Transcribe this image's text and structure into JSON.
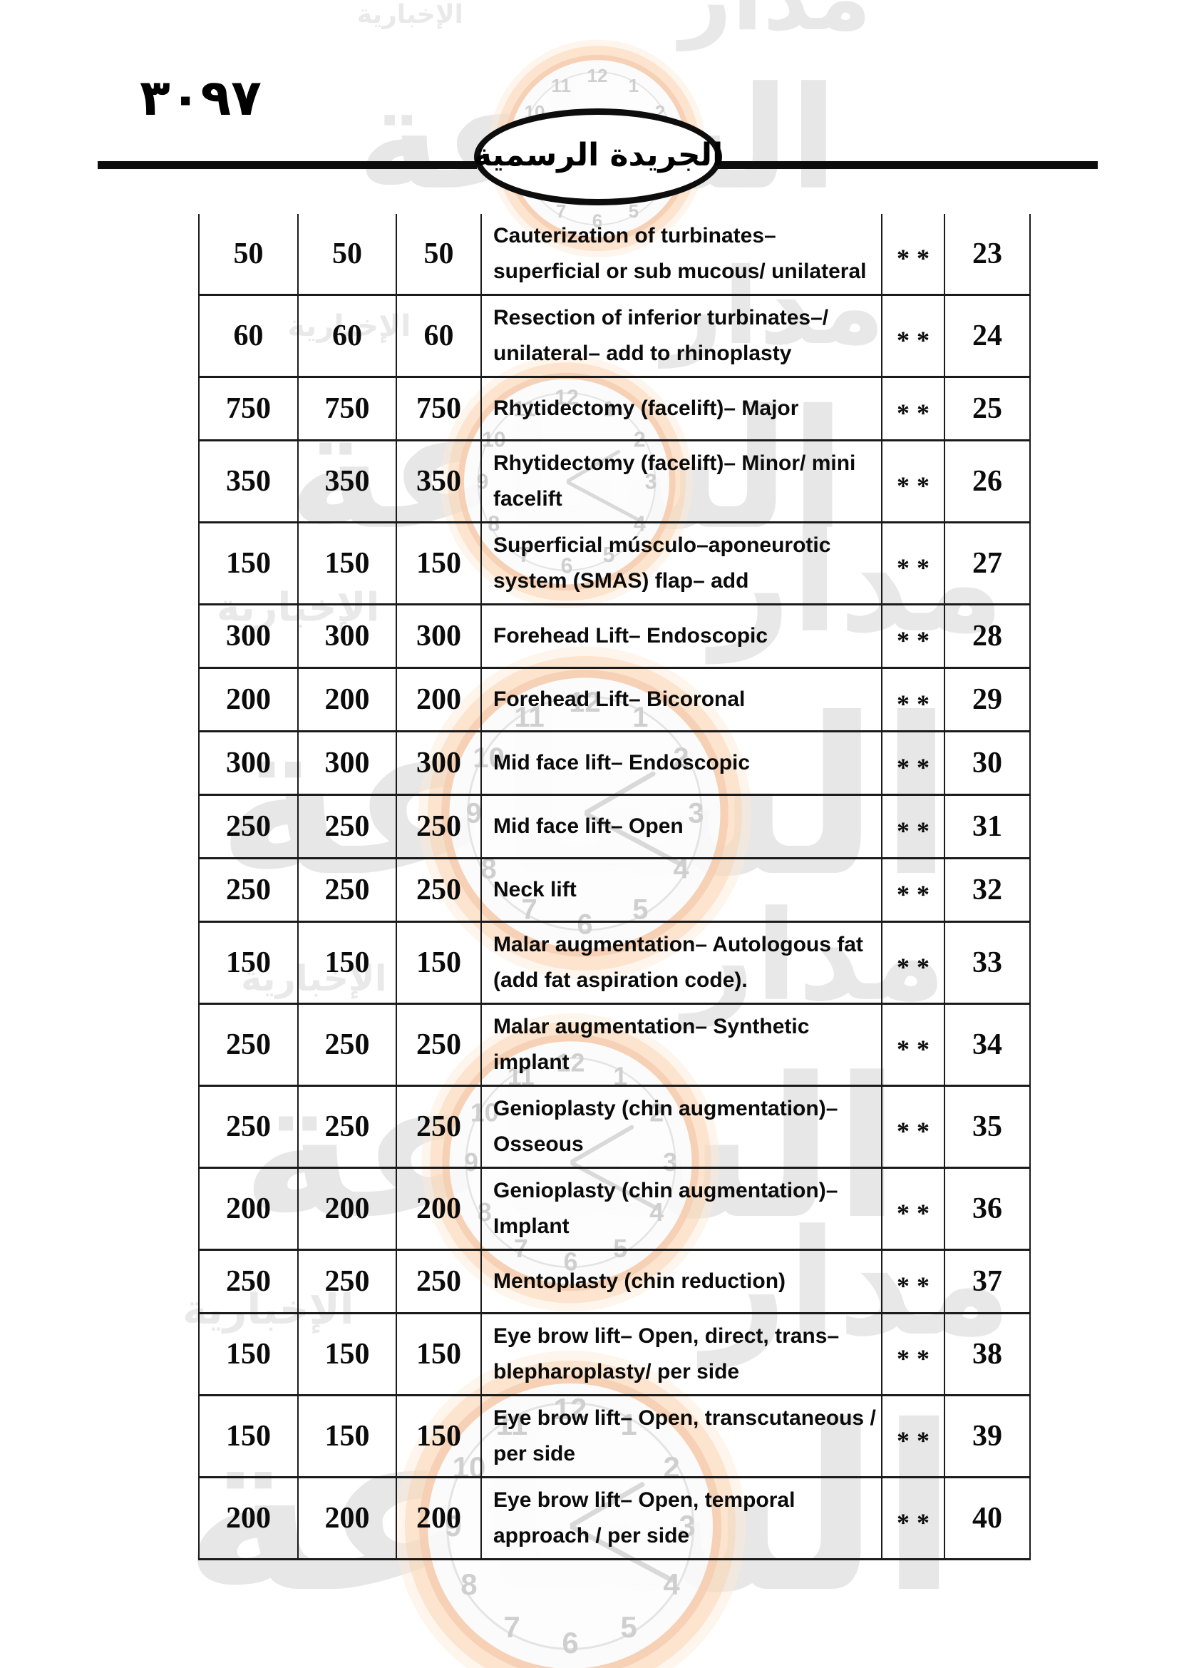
{
  "page": {
    "page_number_arabic": "٣٠٩٧",
    "gazette_badge_label": "الجريدة الرسمية"
  },
  "table": {
    "rows": [
      {
        "fee_a": "50",
        "fee_b": "50",
        "fee_c": "50",
        "description": "Cauterization of turbinates– superficial or sub mucous/ unilateral",
        "flag": "**",
        "code": "23"
      },
      {
        "fee_a": "60",
        "fee_b": "60",
        "fee_c": "60",
        "description": "Resection of inferior turbinates–/ unilateral– add to rhinoplasty",
        "flag": "**",
        "code": "24"
      },
      {
        "fee_a": "750",
        "fee_b": "750",
        "fee_c": "750",
        "description": "Rhytidectomy (facelift)– Major",
        "flag": "**",
        "code": "25"
      },
      {
        "fee_a": "350",
        "fee_b": "350",
        "fee_c": "350",
        "description": "Rhytidectomy (facelift)– Minor/ mini facelift",
        "flag": "**",
        "code": "26"
      },
      {
        "fee_a": "150",
        "fee_b": "150",
        "fee_c": "150",
        "description": "Superficial músculo–aponeurotic system (SMAS) flap– add",
        "flag": "**",
        "code": "27"
      },
      {
        "fee_a": "300",
        "fee_b": "300",
        "fee_c": "300",
        "description": "Forehead Lift– Endoscopic",
        "flag": "**",
        "code": "28"
      },
      {
        "fee_a": "200",
        "fee_b": "200",
        "fee_c": "200",
        "description": "Forehead Lift– Bicoronal",
        "flag": "**",
        "code": "29"
      },
      {
        "fee_a": "300",
        "fee_b": "300",
        "fee_c": "300",
        "description": "Mid face lift– Endoscopic",
        "flag": "**",
        "code": "30"
      },
      {
        "fee_a": "250",
        "fee_b": "250",
        "fee_c": "250",
        "description": "Mid face lift– Open",
        "flag": "**",
        "code": "31"
      },
      {
        "fee_a": "250",
        "fee_b": "250",
        "fee_c": "250",
        "description": "Neck lift",
        "flag": "**",
        "code": "32"
      },
      {
        "fee_a": "150",
        "fee_b": "150",
        "fee_c": "150",
        "description": "Malar augmentation– Autologous fat (add fat aspiration code).",
        "flag": "**",
        "code": "33"
      },
      {
        "fee_a": "250",
        "fee_b": "250",
        "fee_c": "250",
        "description": "Malar augmentation– Synthetic implant",
        "flag": "**",
        "code": "34"
      },
      {
        "fee_a": "250",
        "fee_b": "250",
        "fee_c": "250",
        "description": "Genioplasty (chin augmentation)– Osseous",
        "flag": "**",
        "code": "35"
      },
      {
        "fee_a": "200",
        "fee_b": "200",
        "fee_c": "200",
        "description": "Genioplasty (chin augmentation)– Implant",
        "flag": "**",
        "code": "36"
      },
      {
        "fee_a": "250",
        "fee_b": "250",
        "fee_c": "250",
        "description": "Mentoplasty (chin reduction)",
        "flag": "**",
        "code": "37"
      },
      {
        "fee_a": "150",
        "fee_b": "150",
        "fee_c": "150",
        "description": "Eye brow lift– Open, direct, trans–blepharoplasty/ per side",
        "flag": "**",
        "code": "38"
      },
      {
        "fee_a": "150",
        "fee_b": "150",
        "fee_c": "150",
        "description": "Eye brow lift– Open, transcutaneous / per side",
        "flag": "**",
        "code": "39"
      },
      {
        "fee_a": "200",
        "fee_b": "200",
        "fee_c": "200",
        "description": "Eye brow lift– Open, temporal approach / per side",
        "flag": "**",
        "code": "40"
      }
    ]
  },
  "watermark": {
    "word_madar": "مدار",
    "word_alsaa": "الساعة",
    "word_akhbaria": "الإخبارية",
    "clock_numbers": [
      "12",
      "1",
      "2",
      "3",
      "4",
      "5",
      "6",
      "7",
      "8",
      "9",
      "10",
      "11"
    ],
    "ring_color": "#f2a770",
    "text_color": "#e7e7e7"
  }
}
